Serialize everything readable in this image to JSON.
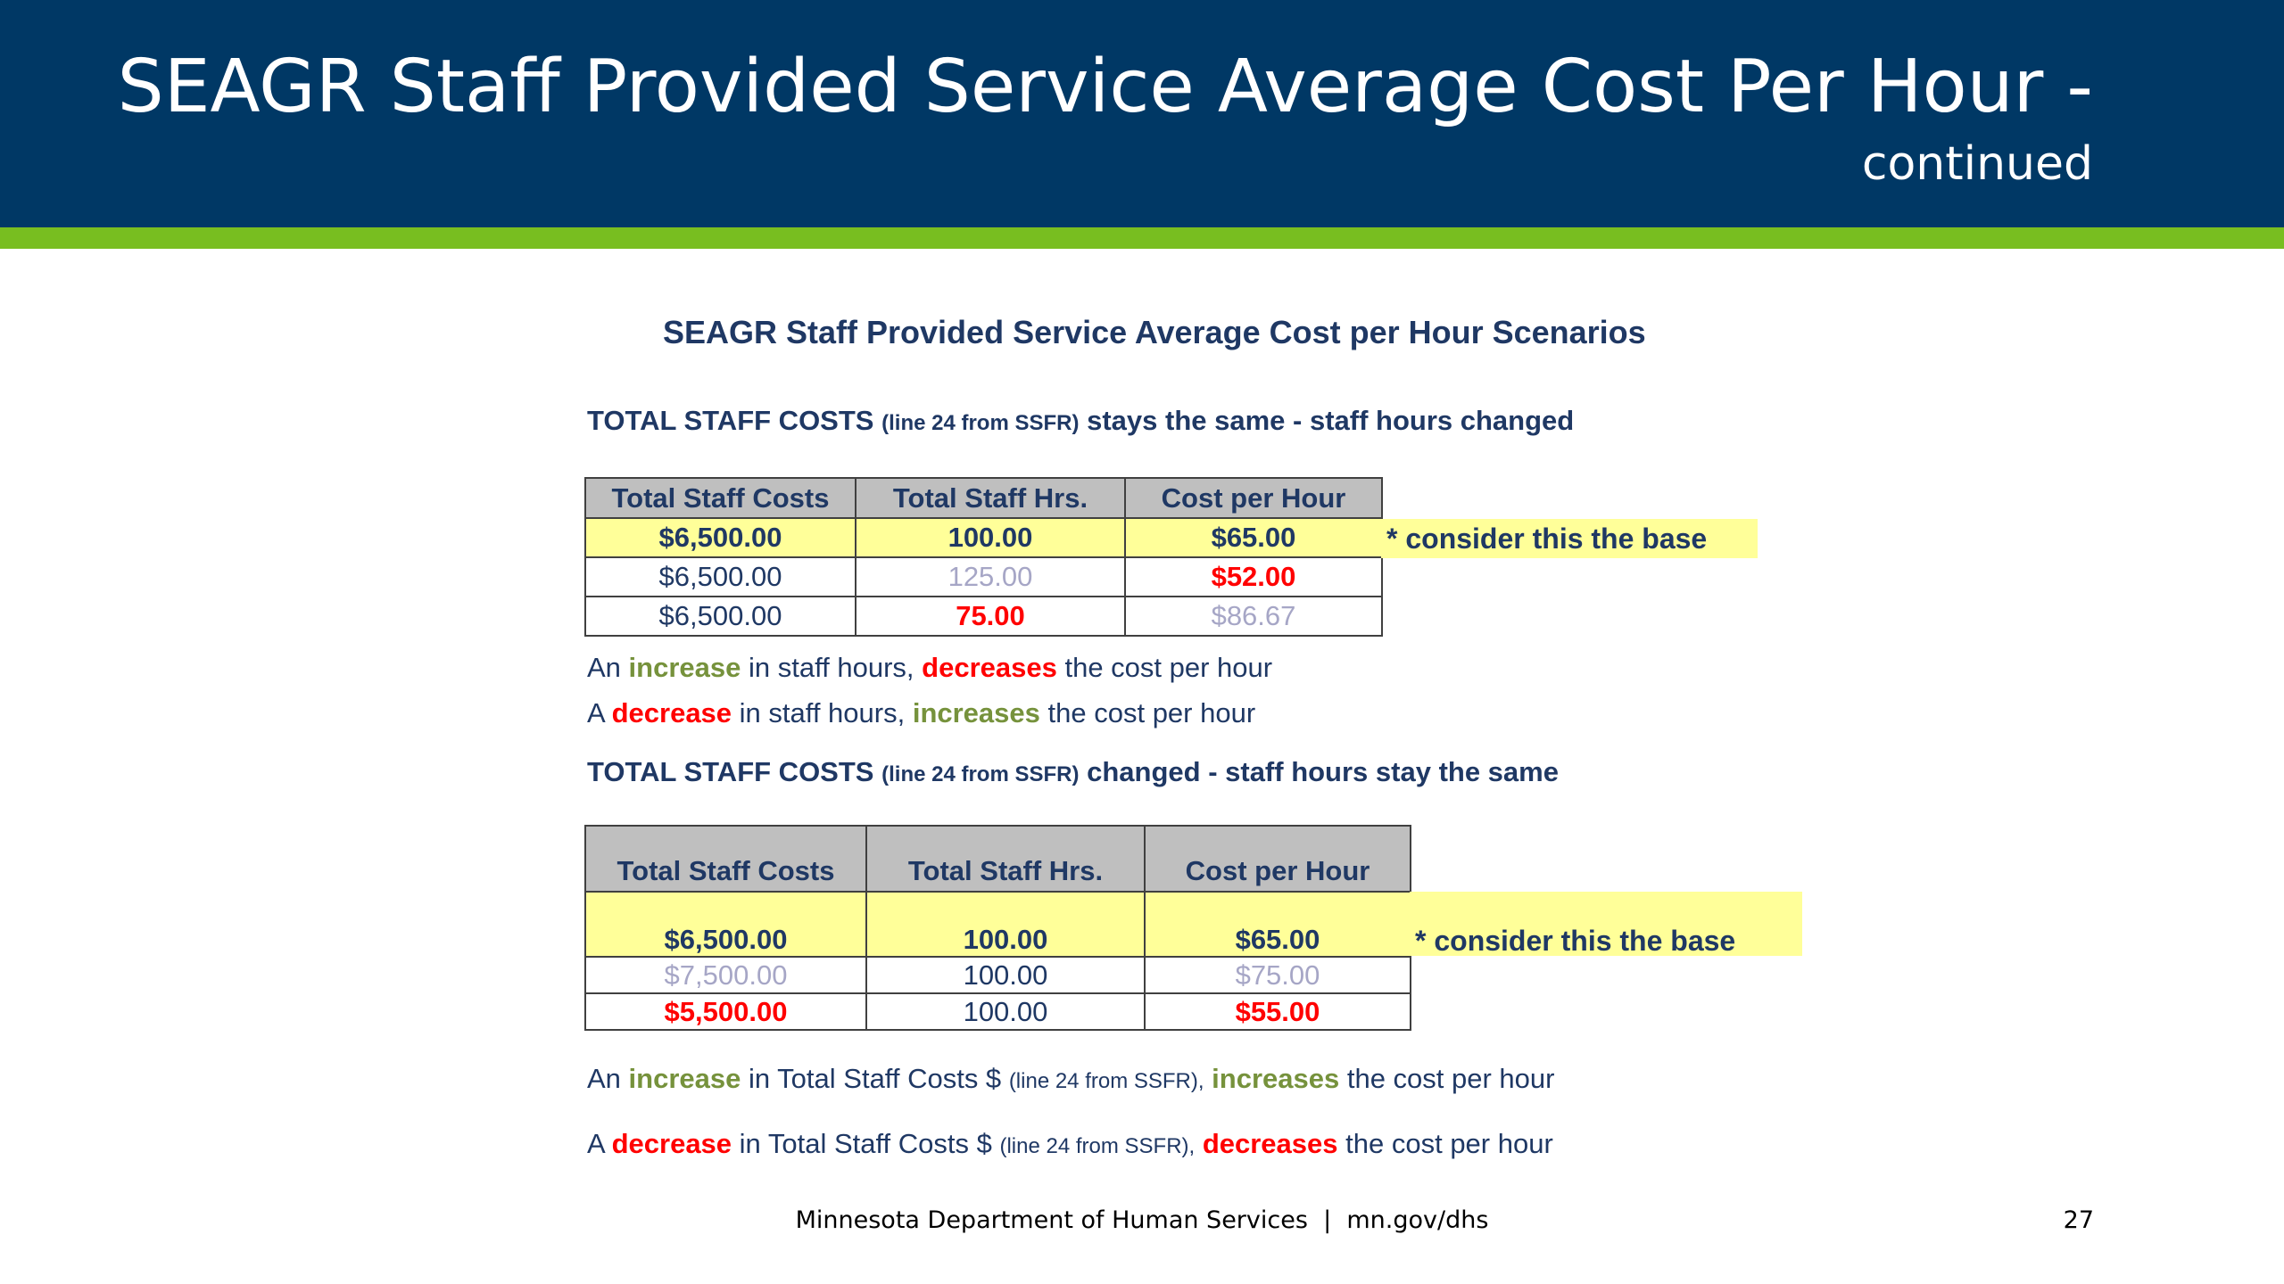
{
  "slide": {
    "title_line1": "SEAGR Staff Provided Service Average Cost Per Hour -",
    "title_line2": "continued",
    "header_color": "#003865",
    "stripe_color": "#78be20"
  },
  "figure": {
    "title": "SEAGR Staff Provided Service Average Cost per Hour Scenarios"
  },
  "section1": {
    "heading_a": "TOTAL STAFF COSTS",
    "heading_small": "(line 24 from SSFR)",
    "heading_b": "stays the same - staff hours changed",
    "columns": [
      "Total Staff Costs",
      "Total Staff Hrs.",
      "Cost per Hour"
    ],
    "rows": [
      [
        "$6,500.00",
        "100.00",
        "$65.00"
      ],
      [
        "$6,500.00",
        "125.00",
        "$52.00"
      ],
      [
        "$6,500.00",
        "75.00",
        "$86.67"
      ]
    ],
    "note": "* consider this the base",
    "line1": {
      "a": "An",
      "b": "increase",
      "c": "in staff hours,",
      "d": "decreases",
      "e": "the cost per hour"
    },
    "line2": {
      "a": "A",
      "b": "decrease",
      "c": "in staff hours,",
      "d": "increases",
      "e": "the cost per hour"
    }
  },
  "section2": {
    "heading_a": "TOTAL STAFF COSTS",
    "heading_small": "(line 24 from SSFR)",
    "heading_b": "changed - staff hours stay the same",
    "columns": [
      "Total Staff Costs",
      "Total Staff Hrs.",
      "Cost per Hour"
    ],
    "rows": [
      [
        "$6,500.00",
        "100.00",
        "$65.00"
      ],
      [
        "$7,500.00",
        "100.00",
        "$75.00"
      ],
      [
        "$5,500.00",
        "100.00",
        "$55.00"
      ]
    ],
    "note": "* consider this the base",
    "line1": {
      "a": "An",
      "b": "increase",
      "c": "in Total Staff Costs $",
      "small": "(line 24 from SSFR),",
      "d": "increases",
      "e": "the cost per hour"
    },
    "line2": {
      "a": "A",
      "b": "decrease",
      "c": "in Total Staff Costs $",
      "small": "(line 24 from SSFR),",
      "d": "decreases",
      "e": "the cost per hour"
    }
  },
  "footer": {
    "text": "Minnesota Department of Human Services  |  mn.gov/dhs",
    "page": "27"
  }
}
